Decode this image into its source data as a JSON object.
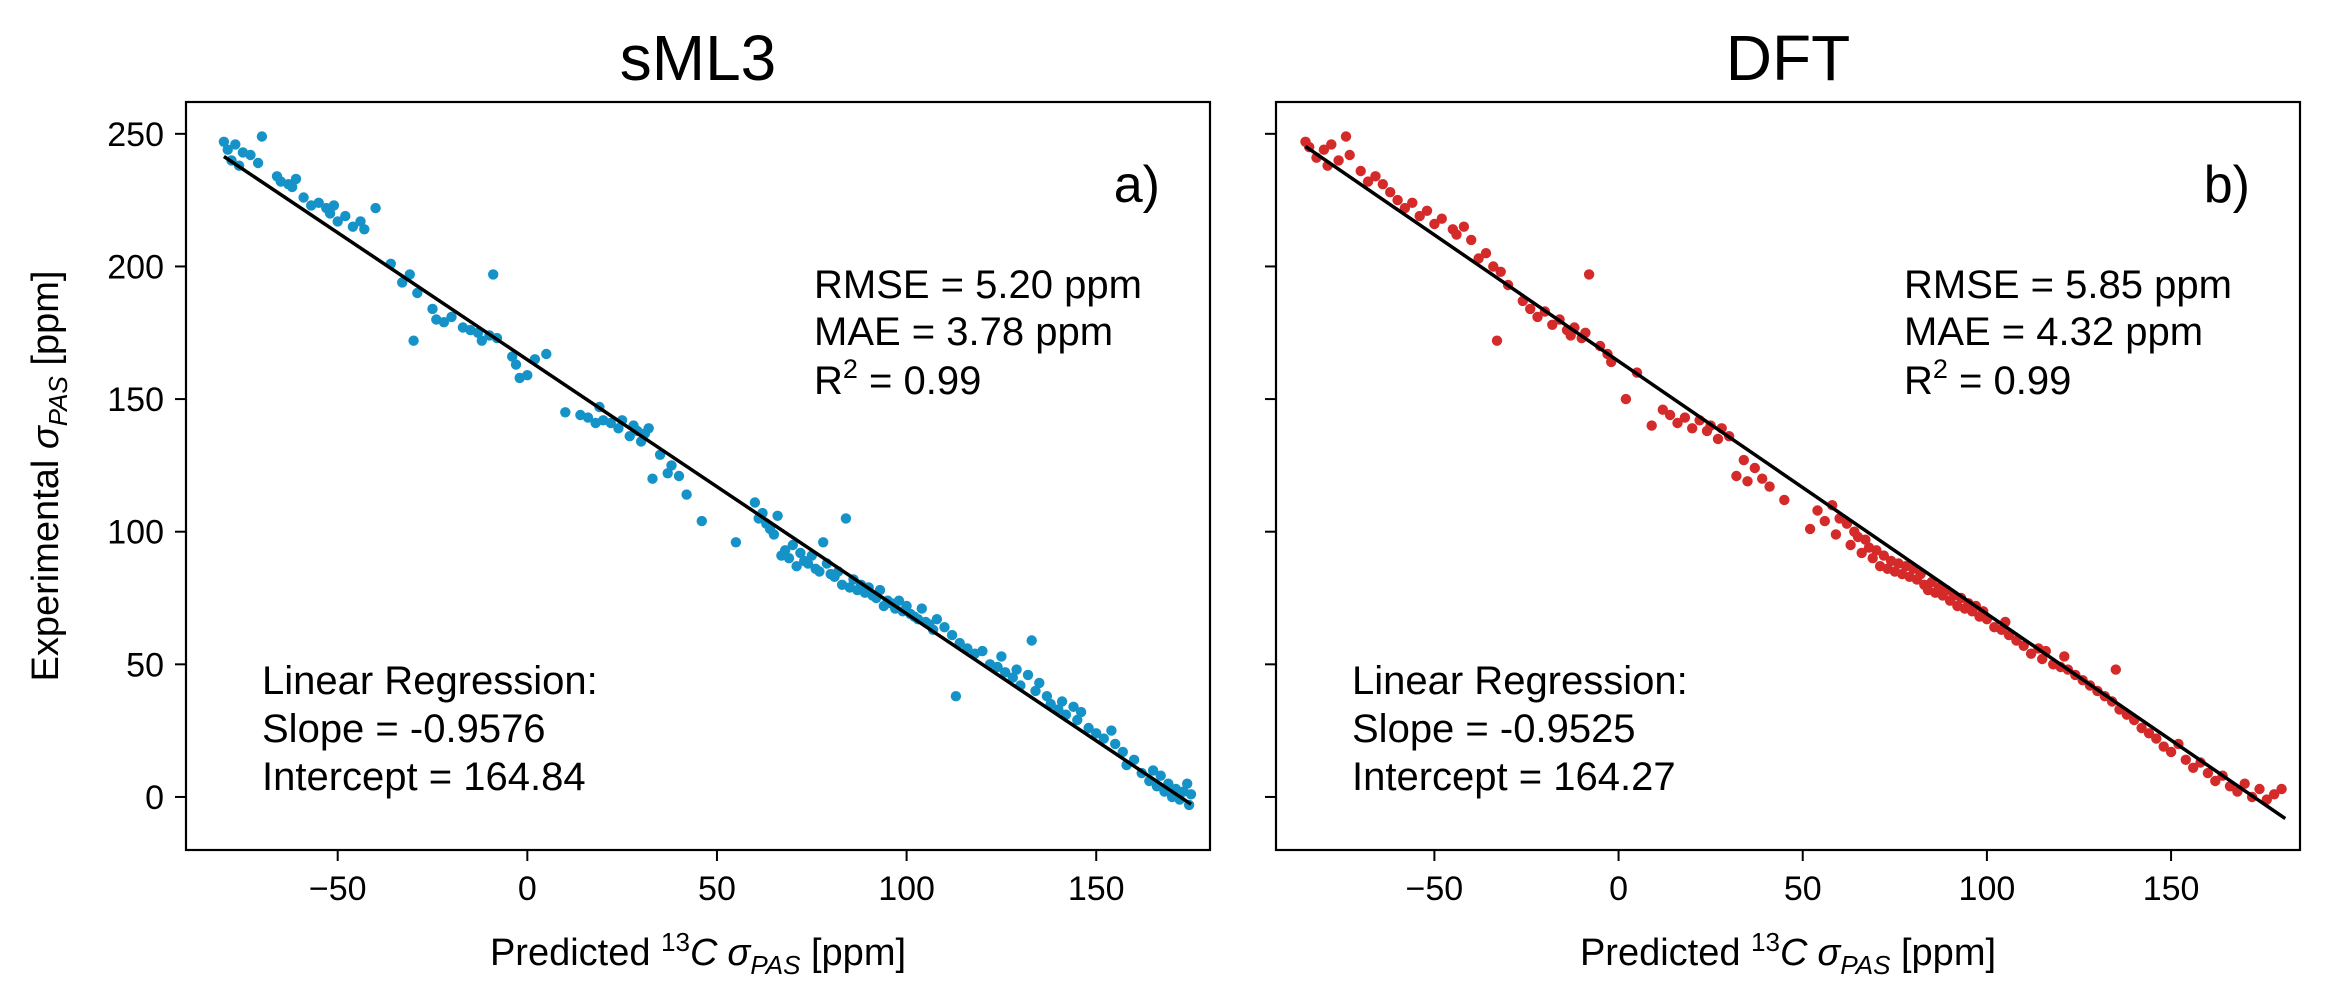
{
  "chart_data": [
    {
      "type": "scatter",
      "title": "sML3",
      "panel_label": "a)",
      "xlabel": {
        "prefix": "Predicted ",
        "iso": "13",
        "element": "C",
        "symbol": "σ",
        "sub": "PAS",
        "unit": " [ppm]"
      },
      "ylabel": {
        "prefix": "Experimental ",
        "symbol": "σ",
        "sub": "PAS",
        "unit": " [ppm]"
      },
      "xlim": [
        -90,
        180
      ],
      "ylim": [
        -20,
        262
      ],
      "xticks": [
        -50,
        0,
        50,
        100,
        150
      ],
      "xtick_labels": [
        "−50",
        "0",
        "50",
        "100",
        "150"
      ],
      "yticks": [
        0,
        50,
        100,
        150,
        200,
        250
      ],
      "ytick_labels": [
        "0",
        "50",
        "100",
        "150",
        "200",
        "250"
      ],
      "show_ytick_labels": true,
      "color": "#1593c8",
      "metrics": {
        "rmse": "RMSE = 5.20 ppm",
        "mae": "MAE = 3.78 ppm",
        "r2_prefix": "R",
        "r2_sup": "2",
        "r2_value": " = 0.99"
      },
      "regression": {
        "title": "Linear Regression:",
        "slope_text": "Slope = -0.9576",
        "intercept_text": "Intercept = 164.84",
        "slope": -0.9576,
        "intercept": 164.84,
        "x_range": [
          -80,
          175
        ]
      },
      "points": [
        [
          -80,
          247
        ],
        [
          -79,
          244
        ],
        [
          -78,
          240
        ],
        [
          -77,
          246
        ],
        [
          -76,
          238
        ],
        [
          -75,
          243
        ],
        [
          -73,
          242
        ],
        [
          -71,
          239
        ],
        [
          -70,
          249
        ],
        [
          -66,
          234
        ],
        [
          -65,
          232
        ],
        [
          -63,
          231
        ],
        [
          -62,
          230
        ],
        [
          -61,
          233
        ],
        [
          -59,
          226
        ],
        [
          -57,
          223
        ],
        [
          -55,
          224
        ],
        [
          -53,
          222
        ],
        [
          -52,
          220
        ],
        [
          -51,
          223
        ],
        [
          -50,
          217
        ],
        [
          -48,
          219
        ],
        [
          -46,
          215
        ],
        [
          -44,
          217
        ],
        [
          -43,
          214
        ],
        [
          -40,
          222
        ],
        [
          -36,
          201
        ],
        [
          -33,
          194
        ],
        [
          -31,
          197
        ],
        [
          -30,
          172
        ],
        [
          -29,
          190
        ],
        [
          -25,
          184
        ],
        [
          -24,
          180
        ],
        [
          -22,
          179
        ],
        [
          -20,
          181
        ],
        [
          -17,
          177
        ],
        [
          -15,
          176
        ],
        [
          -13,
          175
        ],
        [
          -12,
          172
        ],
        [
          -10,
          174
        ],
        [
          -9,
          197
        ],
        [
          -8,
          173
        ],
        [
          -4,
          166
        ],
        [
          -3,
          163
        ],
        [
          -2,
          158
        ],
        [
          0,
          159
        ],
        [
          2,
          165
        ],
        [
          5,
          167
        ],
        [
          10,
          145
        ],
        [
          14,
          144
        ],
        [
          16,
          143
        ],
        [
          18,
          141
        ],
        [
          19,
          147
        ],
        [
          20,
          142
        ],
        [
          22,
          141
        ],
        [
          24,
          139
        ],
        [
          25,
          142
        ],
        [
          27,
          136
        ],
        [
          28,
          140
        ],
        [
          29,
          138
        ],
        [
          30,
          134
        ],
        [
          31,
          137
        ],
        [
          32,
          139
        ],
        [
          33,
          120
        ],
        [
          35,
          129
        ],
        [
          37,
          122
        ],
        [
          38,
          125
        ],
        [
          40,
          121
        ],
        [
          42,
          114
        ],
        [
          46,
          104
        ],
        [
          55,
          96
        ],
        [
          60,
          111
        ],
        [
          61,
          105
        ],
        [
          62,
          107
        ],
        [
          63,
          103
        ],
        [
          64,
          101
        ],
        [
          65,
          99
        ],
        [
          66,
          106
        ],
        [
          67,
          91
        ],
        [
          68,
          93
        ],
        [
          69,
          90
        ],
        [
          70,
          95
        ],
        [
          71,
          87
        ],
        [
          72,
          92
        ],
        [
          73,
          89
        ],
        [
          74,
          88
        ],
        [
          75,
          91
        ],
        [
          76,
          86
        ],
        [
          77,
          85
        ],
        [
          78,
          96
        ],
        [
          79,
          88
        ],
        [
          80,
          84
        ],
        [
          81,
          83
        ],
        [
          82,
          85
        ],
        [
          83,
          80
        ],
        [
          84,
          105
        ],
        [
          85,
          79
        ],
        [
          86,
          82
        ],
        [
          87,
          78
        ],
        [
          88,
          80
        ],
        [
          89,
          77
        ],
        [
          90,
          79
        ],
        [
          91,
          76
        ],
        [
          92,
          75
        ],
        [
          93,
          78
        ],
        [
          94,
          72
        ],
        [
          95,
          74
        ],
        [
          96,
          73
        ],
        [
          97,
          71
        ],
        [
          98,
          74
        ],
        [
          99,
          70
        ],
        [
          100,
          72
        ],
        [
          101,
          69
        ],
        [
          102,
          68
        ],
        [
          103,
          67
        ],
        [
          104,
          71
        ],
        [
          105,
          66
        ],
        [
          106,
          65
        ],
        [
          107,
          63
        ],
        [
          108,
          67
        ],
        [
          110,
          64
        ],
        [
          112,
          61
        ],
        [
          113,
          38
        ],
        [
          114,
          58
        ],
        [
          116,
          56
        ],
        [
          118,
          54
        ],
        [
          120,
          55
        ],
        [
          122,
          50
        ],
        [
          124,
          49
        ],
        [
          125,
          53
        ],
        [
          126,
          47
        ],
        [
          128,
          45
        ],
        [
          129,
          48
        ],
        [
          130,
          42
        ],
        [
          132,
          46
        ],
        [
          133,
          59
        ],
        [
          134,
          40
        ],
        [
          135,
          43
        ],
        [
          137,
          38
        ],
        [
          138,
          35
        ],
        [
          140,
          33
        ],
        [
          141,
          36
        ],
        [
          142,
          31
        ],
        [
          144,
          34
        ],
        [
          145,
          29
        ],
        [
          146,
          32
        ],
        [
          148,
          26
        ],
        [
          150,
          24
        ],
        [
          152,
          22
        ],
        [
          154,
          25
        ],
        [
          155,
          20
        ],
        [
          157,
          17
        ],
        [
          158,
          12
        ],
        [
          160,
          14
        ],
        [
          162,
          9
        ],
        [
          164,
          6
        ],
        [
          165,
          10
        ],
        [
          166,
          4
        ],
        [
          167,
          8
        ],
        [
          168,
          2
        ],
        [
          169,
          5
        ],
        [
          170,
          0
        ],
        [
          171,
          3
        ],
        [
          172,
          -1
        ],
        [
          173,
          2
        ],
        [
          174,
          5
        ],
        [
          174.5,
          -3
        ],
        [
          175,
          1
        ]
      ]
    },
    {
      "type": "scatter",
      "title": "DFT",
      "panel_label": "b)",
      "xlabel": {
        "prefix": "Predicted ",
        "iso": "13",
        "element": "C",
        "symbol": "σ",
        "sub": "PAS",
        "unit": " [ppm]"
      },
      "xlim": [
        -93,
        185
      ],
      "ylim": [
        -20,
        262
      ],
      "xticks": [
        -50,
        0,
        50,
        100,
        150
      ],
      "xtick_labels": [
        "−50",
        "0",
        "50",
        "100",
        "150"
      ],
      "yticks": [
        0,
        50,
        100,
        150,
        200,
        250
      ],
      "show_ytick_labels": false,
      "color": "#d42a2a",
      "metrics": {
        "rmse": "RMSE = 5.85 ppm",
        "mae": "MAE = 4.32 ppm",
        "r2_prefix": "R",
        "r2_sup": "2",
        "r2_value": " = 0.99"
      },
      "regression": {
        "title": "Linear Regression:",
        "slope_text": "Slope = -0.9525",
        "intercept_text": "Intercept = 164.27",
        "slope": -0.9525,
        "intercept": 164.27,
        "x_range": [
          -85,
          181
        ]
      },
      "points": [
        [
          -85,
          247
        ],
        [
          -84,
          245
        ],
        [
          -82,
          241
        ],
        [
          -80,
          244
        ],
        [
          -79,
          238
        ],
        [
          -78,
          246
        ],
        [
          -76,
          240
        ],
        [
          -74,
          249
        ],
        [
          -73,
          242
        ],
        [
          -70,
          236
        ],
        [
          -68,
          232
        ],
        [
          -66,
          234
        ],
        [
          -64,
          231
        ],
        [
          -62,
          228
        ],
        [
          -60,
          225
        ],
        [
          -58,
          222
        ],
        [
          -56,
          224
        ],
        [
          -54,
          219
        ],
        [
          -52,
          221
        ],
        [
          -50,
          216
        ],
        [
          -48,
          218
        ],
        [
          -45,
          214
        ],
        [
          -44,
          212
        ],
        [
          -42,
          215
        ],
        [
          -40,
          210
        ],
        [
          -38,
          203
        ],
        [
          -36,
          205
        ],
        [
          -34,
          200
        ],
        [
          -33,
          172
        ],
        [
          -32,
          198
        ],
        [
          -30,
          193
        ],
        [
          -26,
          187
        ],
        [
          -24,
          184
        ],
        [
          -22,
          181
        ],
        [
          -20,
          183
        ],
        [
          -18,
          178
        ],
        [
          -16,
          180
        ],
        [
          -14,
          176
        ],
        [
          -13,
          174
        ],
        [
          -12,
          177
        ],
        [
          -10,
          173
        ],
        [
          -9,
          175
        ],
        [
          -8,
          197
        ],
        [
          -5,
          170
        ],
        [
          -3,
          167
        ],
        [
          -2,
          164
        ],
        [
          2,
          150
        ],
        [
          5,
          160
        ],
        [
          9,
          140
        ],
        [
          12,
          146
        ],
        [
          14,
          144
        ],
        [
          16,
          141
        ],
        [
          18,
          143
        ],
        [
          20,
          139
        ],
        [
          22,
          142
        ],
        [
          24,
          138
        ],
        [
          25,
          140
        ],
        [
          27,
          135
        ],
        [
          28,
          139
        ],
        [
          30,
          136
        ],
        [
          32,
          121
        ],
        [
          34,
          127
        ],
        [
          35,
          119
        ],
        [
          37,
          124
        ],
        [
          39,
          120
        ],
        [
          41,
          117
        ],
        [
          45,
          112
        ],
        [
          52,
          101
        ],
        [
          54,
          108
        ],
        [
          56,
          104
        ],
        [
          58,
          110
        ],
        [
          59,
          99
        ],
        [
          60,
          105
        ],
        [
          62,
          103
        ],
        [
          63,
          95
        ],
        [
          64,
          100
        ],
        [
          65,
          98
        ],
        [
          66,
          92
        ],
        [
          67,
          97
        ],
        [
          68,
          94
        ],
        [
          69,
          90
        ],
        [
          70,
          93
        ],
        [
          71,
          87
        ],
        [
          72,
          91
        ],
        [
          73,
          86
        ],
        [
          74,
          89
        ],
        [
          75,
          85
        ],
        [
          76,
          88
        ],
        [
          77,
          84
        ],
        [
          78,
          87
        ],
        [
          79,
          83
        ],
        [
          80,
          86
        ],
        [
          81,
          82
        ],
        [
          82,
          84
        ],
        [
          83,
          80
        ],
        [
          84,
          78
        ],
        [
          85,
          81
        ],
        [
          86,
          77
        ],
        [
          87,
          79
        ],
        [
          88,
          76
        ],
        [
          89,
          78
        ],
        [
          90,
          74
        ],
        [
          91,
          76
        ],
        [
          92,
          72
        ],
        [
          93,
          75
        ],
        [
          94,
          71
        ],
        [
          95,
          73
        ],
        [
          96,
          70
        ],
        [
          97,
          72
        ],
        [
          98,
          68
        ],
        [
          99,
          70
        ],
        [
          100,
          67
        ],
        [
          102,
          64
        ],
        [
          104,
          63
        ],
        [
          105,
          66
        ],
        [
          106,
          61
        ],
        [
          108,
          59
        ],
        [
          110,
          57
        ],
        [
          112,
          54
        ],
        [
          114,
          56
        ],
        [
          115,
          52
        ],
        [
          116,
          55
        ],
        [
          118,
          50
        ],
        [
          120,
          49
        ],
        [
          121,
          53
        ],
        [
          122,
          48
        ],
        [
          124,
          46
        ],
        [
          126,
          44
        ],
        [
          128,
          42
        ],
        [
          130,
          40
        ],
        [
          132,
          38
        ],
        [
          134,
          36
        ],
        [
          135,
          48
        ],
        [
          136,
          33
        ],
        [
          138,
          31
        ],
        [
          140,
          29
        ],
        [
          142,
          26
        ],
        [
          144,
          24
        ],
        [
          146,
          22
        ],
        [
          148,
          19
        ],
        [
          150,
          17
        ],
        [
          152,
          20
        ],
        [
          154,
          14
        ],
        [
          156,
          11
        ],
        [
          158,
          13
        ],
        [
          160,
          9
        ],
        [
          162,
          6
        ],
        [
          164,
          8
        ],
        [
          166,
          4
        ],
        [
          168,
          2
        ],
        [
          170,
          5
        ],
        [
          172,
          0
        ],
        [
          174,
          3
        ],
        [
          176,
          -1
        ],
        [
          178,
          1
        ],
        [
          180,
          3
        ]
      ]
    }
  ]
}
